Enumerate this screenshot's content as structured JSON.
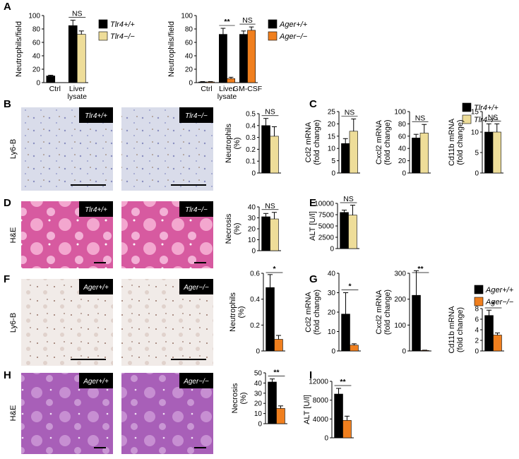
{
  "panel_labels": [
    "A",
    "B",
    "C",
    "D",
    "E",
    "F",
    "G",
    "H",
    "I"
  ],
  "micrographs": [
    {
      "stain": "Ly6-B",
      "labels": [
        "Tlr4+/+",
        "Tlr4−/−"
      ]
    },
    {
      "stain": "H&E",
      "labels": [
        "Tlr4+/+",
        "Tlr4−/−"
      ]
    },
    {
      "stain": "Ly6-B",
      "labels": [
        "Ager+/+",
        "Ager−/−"
      ]
    },
    {
      "stain": "H&E",
      "labels": [
        "Ager+/+",
        "Ager−/−"
      ]
    }
  ],
  "chart_data": [
    {
      "type": "bar",
      "y_label": "Neutrophils/field",
      "categories": [
        "Ctrl",
        "Liver lysate"
      ],
      "legend": true,
      "series": [
        {
          "name": "Tlr4+/+",
          "color": "#000000",
          "values": [
            10,
            85
          ],
          "errors": [
            1,
            8
          ]
        },
        {
          "name": "Tlr4−/−",
          "color": "#eedd99",
          "values": [
            null,
            72
          ],
          "errors": [
            null,
            5
          ]
        }
      ],
      "annotations": [
        null,
        "NS"
      ],
      "ylim": [
        0,
        100
      ],
      "yticks": [
        0,
        20,
        40,
        60,
        80,
        100
      ]
    },
    {
      "type": "bar",
      "y_label": "Neutrophils/field",
      "categories": [
        "Ctrl",
        "Liver lysate",
        "GM-CSF"
      ],
      "legend": true,
      "series": [
        {
          "name": "Ager+/+",
          "color": "#000000",
          "values": [
            1,
            72,
            72
          ],
          "errors": [
            0.5,
            9,
            5
          ]
        },
        {
          "name": "Ager−/−",
          "color": "#f07f1e",
          "values": [
            1,
            6,
            78
          ],
          "errors": [
            0.5,
            2,
            5
          ]
        }
      ],
      "annotations": [
        null,
        "**",
        "NS"
      ],
      "ylim": [
        0,
        100
      ],
      "yticks": [
        0,
        20,
        40,
        60,
        80,
        100
      ]
    },
    {
      "type": "bar",
      "y_label": "Neutrophils (%)",
      "series": [
        {
          "color": "#000000",
          "values": [
            0.4
          ],
          "errors": [
            0.06
          ]
        },
        {
          "color": "#eedd99",
          "values": [
            0.31
          ],
          "errors": [
            0.08
          ]
        }
      ],
      "annotations": [
        "NS"
      ],
      "ylim": [
        0,
        0.5
      ],
      "yticks": [
        0,
        0.1,
        0.2,
        0.3,
        0.4,
        0.5
      ]
    },
    {
      "type": "bar",
      "y_label": "Ccl2 mRNA (fold change)",
      "legend": true,
      "series": [
        {
          "name": "Tlr4+/+",
          "color": "#000000",
          "values": [
            12
          ],
          "errors": [
            2
          ]
        },
        {
          "name": "Tlr4−/−",
          "color": "#eedd99",
          "values": [
            17
          ],
          "errors": [
            5
          ]
        }
      ],
      "annotations": [
        "NS"
      ],
      "ylim": [
        0,
        25
      ],
      "yticks": [
        0,
        5,
        10,
        15,
        20,
        25
      ]
    },
    {
      "type": "bar",
      "y_label": "Cxcl2 mRNA (fold change)",
      "series": [
        {
          "color": "#000000",
          "values": [
            57
          ],
          "errors": [
            6
          ]
        },
        {
          "color": "#eedd99",
          "values": [
            65
          ],
          "errors": [
            14
          ]
        }
      ],
      "annotations": [
        "NS"
      ],
      "ylim": [
        0,
        100
      ],
      "yticks": [
        0,
        20,
        40,
        60,
        80,
        100
      ]
    },
    {
      "type": "bar",
      "y_label": "Cd11b mRNA (fold change)",
      "series": [
        {
          "color": "#000000",
          "values": [
            10
          ],
          "errors": [
            2
          ]
        },
        {
          "color": "#eedd99",
          "values": [
            10
          ],
          "errors": [
            2
          ]
        }
      ],
      "annotations": [
        "NS"
      ],
      "ylim": [
        0,
        15
      ],
      "yticks": [
        0,
        5,
        10,
        15
      ]
    },
    {
      "type": "bar",
      "y_label": "Necrosis (%)",
      "series": [
        {
          "color": "#000000",
          "values": [
            31
          ],
          "errors": [
            3
          ]
        },
        {
          "color": "#eedd99",
          "values": [
            29
          ],
          "errors": [
            6
          ]
        }
      ],
      "annotations": [
        "NS"
      ],
      "ylim": [
        0,
        40
      ],
      "yticks": [
        0,
        10,
        20,
        30,
        40
      ]
    },
    {
      "type": "bar",
      "y_label": "ALT [U/l]",
      "series": [
        {
          "color": "#000000",
          "values": [
            8000
          ],
          "errors": [
            500
          ]
        },
        {
          "color": "#eedd99",
          "values": [
            7400
          ],
          "errors": [
            2200
          ]
        }
      ],
      "annotations": [
        "NS"
      ],
      "ylim": [
        0,
        10000
      ],
      "yticks": [
        0,
        2500,
        5000,
        7500,
        10000
      ]
    },
    {
      "type": "bar",
      "y_label": "Neutrophils (%)",
      "series": [
        {
          "color": "#000000",
          "values": [
            0.49
          ],
          "errors": [
            0.1
          ]
        },
        {
          "color": "#f07f1e",
          "values": [
            0.09
          ],
          "errors": [
            0.03
          ]
        }
      ],
      "annotations": [
        "*"
      ],
      "ylim": [
        0,
        0.6
      ],
      "yticks": [
        0,
        0.2,
        0.4,
        0.6
      ]
    },
    {
      "type": "bar",
      "y_label": "Ccl2 mRNA (fold change)",
      "legend": true,
      "series": [
        {
          "name": "Ager+/+",
          "color": "#000000",
          "values": [
            19
          ],
          "errors": [
            11
          ]
        },
        {
          "name": "Ager−/−",
          "color": "#f07f1e",
          "values": [
            3
          ],
          "errors": [
            0.7
          ]
        }
      ],
      "annotations": [
        "*"
      ],
      "ylim": [
        0,
        40
      ],
      "yticks": [
        0,
        10,
        20,
        30,
        40
      ]
    },
    {
      "type": "bar",
      "y_label": "Cxcl2 mRNA (fold change)",
      "series": [
        {
          "color": "#000000",
          "values": [
            215
          ],
          "errors": [
            95
          ]
        },
        {
          "color": "#f07f1e",
          "values": [
            2
          ],
          "errors": [
            1
          ]
        }
      ],
      "annotations": [
        "**"
      ],
      "ylim": [
        0,
        300
      ],
      "yticks": [
        0,
        100,
        200,
        300
      ]
    },
    {
      "type": "bar",
      "y_label": "Cd11b mRNA (fold change)",
      "series": [
        {
          "color": "#000000",
          "values": [
            6.7
          ],
          "errors": [
            1
          ]
        },
        {
          "color": "#f07f1e",
          "values": [
            3
          ],
          "errors": [
            0.4
          ]
        }
      ],
      "annotations": [
        "*"
      ],
      "ylim": [
        0,
        8
      ],
      "yticks": [
        0,
        2,
        4,
        6,
        8
      ]
    },
    {
      "type": "bar",
      "y_label": "Necrosis (%)",
      "series": [
        {
          "color": "#000000",
          "values": [
            41
          ],
          "errors": [
            3
          ]
        },
        {
          "color": "#f07f1e",
          "values": [
            15
          ],
          "errors": [
            2.5
          ]
        }
      ],
      "annotations": [
        "**"
      ],
      "ylim": [
        0,
        50
      ],
      "yticks": [
        0,
        10,
        20,
        30,
        40,
        50
      ]
    },
    {
      "type": "bar",
      "y_label": "ALT [U/l]",
      "series": [
        {
          "color": "#000000",
          "values": [
            9300
          ],
          "errors": [
            1200
          ]
        },
        {
          "color": "#f07f1e",
          "values": [
            3700
          ],
          "errors": [
            900
          ]
        }
      ],
      "annotations": [
        "**"
      ],
      "ylim": [
        0,
        12000
      ],
      "yticks": [
        0,
        4000,
        8000,
        12000
      ]
    }
  ]
}
